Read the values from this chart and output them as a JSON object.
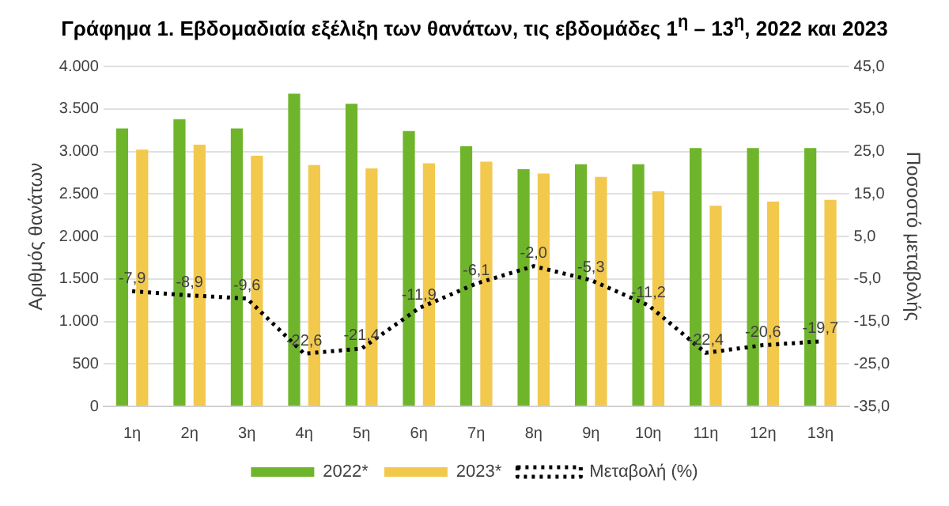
{
  "chart_data": {
    "type": "bar",
    "title": "Γράφημα 1.  Εβδομαδιαία εξέλιξη των θανάτων, τις εβδομάδες 1$^{η}$ – 13$^{η}$, 2022 και 2023",
    "ylabel": "Αριθμός θανάτων",
    "y2label": "Ποσοστό μεταβολής",
    "categories": [
      "1η",
      "2η",
      "3η",
      "4η",
      "5η",
      "6η",
      "7η",
      "8η",
      "9η",
      "10η",
      "11η",
      "12η",
      "13η"
    ],
    "series": [
      {
        "name": "2022*",
        "color": "#6fb52c",
        "values": [
          3270,
          3380,
          3270,
          3680,
          3560,
          3240,
          3060,
          2790,
          2850,
          2850,
          3040,
          3040,
          3040
        ]
      },
      {
        "name": "2023*",
        "color": "#f2c94c",
        "values": [
          3020,
          3080,
          2950,
          2840,
          2800,
          2860,
          2880,
          2740,
          2700,
          2530,
          2360,
          2410,
          2430
        ]
      },
      {
        "name": "Μεταβολή (%)",
        "type": "line",
        "axis": "y2",
        "color": "#000000",
        "line_style": "dotted",
        "marker": "none",
        "values": [
          -7.9,
          -8.9,
          -9.6,
          -22.6,
          -21.4,
          -11.9,
          -6.1,
          -2.0,
          -5.3,
          -11.2,
          -22.4,
          -20.6,
          -19.7
        ],
        "value_labels": [
          "-7,9",
          "-8,9",
          "-9,6",
          "-22,6",
          "-21,4",
          "-11,9",
          "-6,1",
          "-2,0",
          "-5,3",
          "-11,2",
          "-22,4",
          "-20,6",
          "-19,7"
        ]
      }
    ],
    "ylim": [
      0,
      4000
    ],
    "yticks": [
      0,
      500,
      {
        "value": 1000,
        "label": "1.000"
      },
      {
        "value": 1500,
        "label": "1.500"
      },
      {
        "value": 2000,
        "label": "2.000"
      },
      {
        "value": 2500,
        "label": "2.500"
      },
      {
        "value": 3000,
        "label": "3.000"
      },
      {
        "value": 3500,
        "label": "3.500"
      },
      {
        "value": 4000,
        "label": "4.000"
      }
    ],
    "y2lim": [
      -35,
      45
    ],
    "y2ticks": [
      {
        "value": -35,
        "label": "-35,0"
      },
      {
        "value": -25,
        "label": "-25,0"
      },
      {
        "value": -15,
        "label": "-15,0"
      },
      {
        "value": -5,
        "label": "-5,0"
      },
      {
        "value": 5,
        "label": "5,0"
      },
      {
        "value": 15,
        "label": "15,0"
      },
      {
        "value": 25,
        "label": "25,0"
      },
      {
        "value": 35,
        "label": "35,0"
      },
      {
        "value": 45,
        "label": "45,0"
      }
    ],
    "grid": "y",
    "legend": "bottom"
  }
}
